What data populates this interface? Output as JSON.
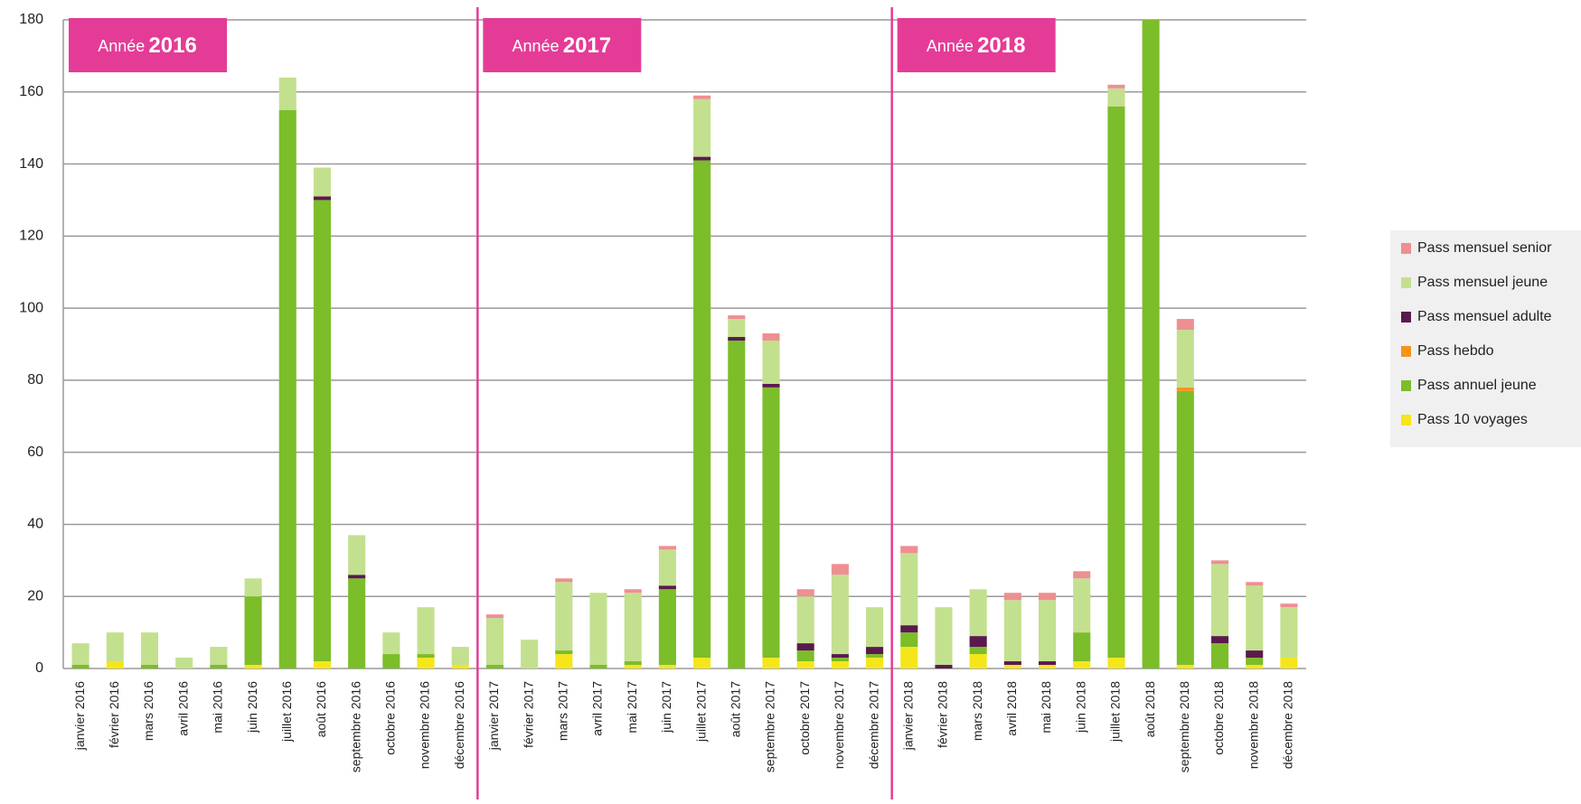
{
  "chart_data": {
    "type": "stacked_bar",
    "categories": [
      "janvier 2016",
      "février 2016",
      "mars 2016",
      "avril 2016",
      "mai 2016",
      "juin 2016",
      "juillet 2016",
      "août 2016",
      "septembre 2016",
      "octobre 2016",
      "novembre 2016",
      "décembre 2016",
      "janvier 2017",
      "février 2017",
      "mars 2017",
      "avril 2017",
      "mai 2017",
      "juin 2017",
      "juillet 2017",
      "août 2017",
      "septembre 2017",
      "octobre 2017",
      "novembre 2017",
      "décembre 2017",
      "janvier 2018",
      "février 2018",
      "mars 2018",
      "avril 2018",
      "mai 2018",
      "juin 2018",
      "juillet 2018",
      "août 2018",
      "septembre 2018",
      "octobre 2018",
      "novembre 2018",
      "décembre 2018"
    ],
    "series": [
      {
        "name": "Pass 10 voyages",
        "color": "#f5e61a",
        "values": [
          0,
          2,
          0,
          0,
          0,
          1,
          0,
          2,
          0,
          0,
          3,
          1,
          0,
          0,
          4,
          0,
          1,
          1,
          3,
          0,
          3,
          2,
          2,
          3,
          6,
          0,
          4,
          1,
          1,
          2,
          3,
          0,
          1,
          0,
          1,
          3
        ]
      },
      {
        "name": "Pass annuel jeune",
        "color": "#7cbd2a",
        "values": [
          1,
          0,
          1,
          0,
          1,
          19,
          155,
          128,
          25,
          4,
          1,
          0,
          1,
          0,
          1,
          1,
          1,
          21,
          138,
          91,
          75,
          3,
          1,
          1,
          4,
          0,
          2,
          0,
          0,
          8,
          153,
          180,
          76,
          7,
          2,
          0
        ]
      },
      {
        "name": "Pass hebdo",
        "color": "#f7941d",
        "values": [
          0,
          0,
          0,
          0,
          0,
          0,
          0,
          0,
          0,
          0,
          0,
          0,
          0,
          0,
          0,
          0,
          0,
          0,
          0,
          0,
          0,
          0,
          0,
          0,
          0,
          0,
          0,
          0,
          0,
          0,
          0,
          0,
          1,
          0,
          0,
          0
        ]
      },
      {
        "name": "Pass mensuel adulte",
        "color": "#5b1a4e",
        "values": [
          0,
          0,
          0,
          0,
          0,
          0,
          0,
          1,
          1,
          0,
          0,
          0,
          0,
          0,
          0,
          0,
          0,
          1,
          1,
          1,
          1,
          2,
          1,
          2,
          2,
          1,
          3,
          1,
          1,
          0,
          0,
          0,
          0,
          2,
          2,
          0
        ]
      },
      {
        "name": "Pass mensuel jeune",
        "color": "#c3e08f",
        "values": [
          6,
          8,
          9,
          3,
          5,
          5,
          9,
          8,
          11,
          6,
          13,
          5,
          13,
          8,
          19,
          20,
          19,
          10,
          16,
          5,
          12,
          13,
          22,
          11,
          20,
          16,
          13,
          17,
          17,
          15,
          5,
          0,
          16,
          20,
          18,
          14
        ]
      },
      {
        "name": "Pass mensuel senior",
        "color": "#ee8f92",
        "values": [
          0,
          0,
          0,
          0,
          0,
          0,
          0,
          0,
          0,
          0,
          0,
          0,
          1,
          0,
          1,
          0,
          1,
          1,
          1,
          1,
          2,
          2,
          3,
          0,
          2,
          0,
          0,
          2,
          2,
          2,
          1,
          0,
          3,
          1,
          1,
          1
        ]
      }
    ],
    "annotations": [
      {
        "label": "Année",
        "year": "2016"
      },
      {
        "label": "Année",
        "year": "2017"
      },
      {
        "label": "Année",
        "year": "2018"
      }
    ],
    "annotation_color": "#e43c96",
    "ylim": [
      0,
      180
    ],
    "yticks": [
      0,
      20,
      40,
      60,
      80,
      100,
      120,
      140,
      160,
      180
    ],
    "grid": true,
    "legend": "right"
  }
}
